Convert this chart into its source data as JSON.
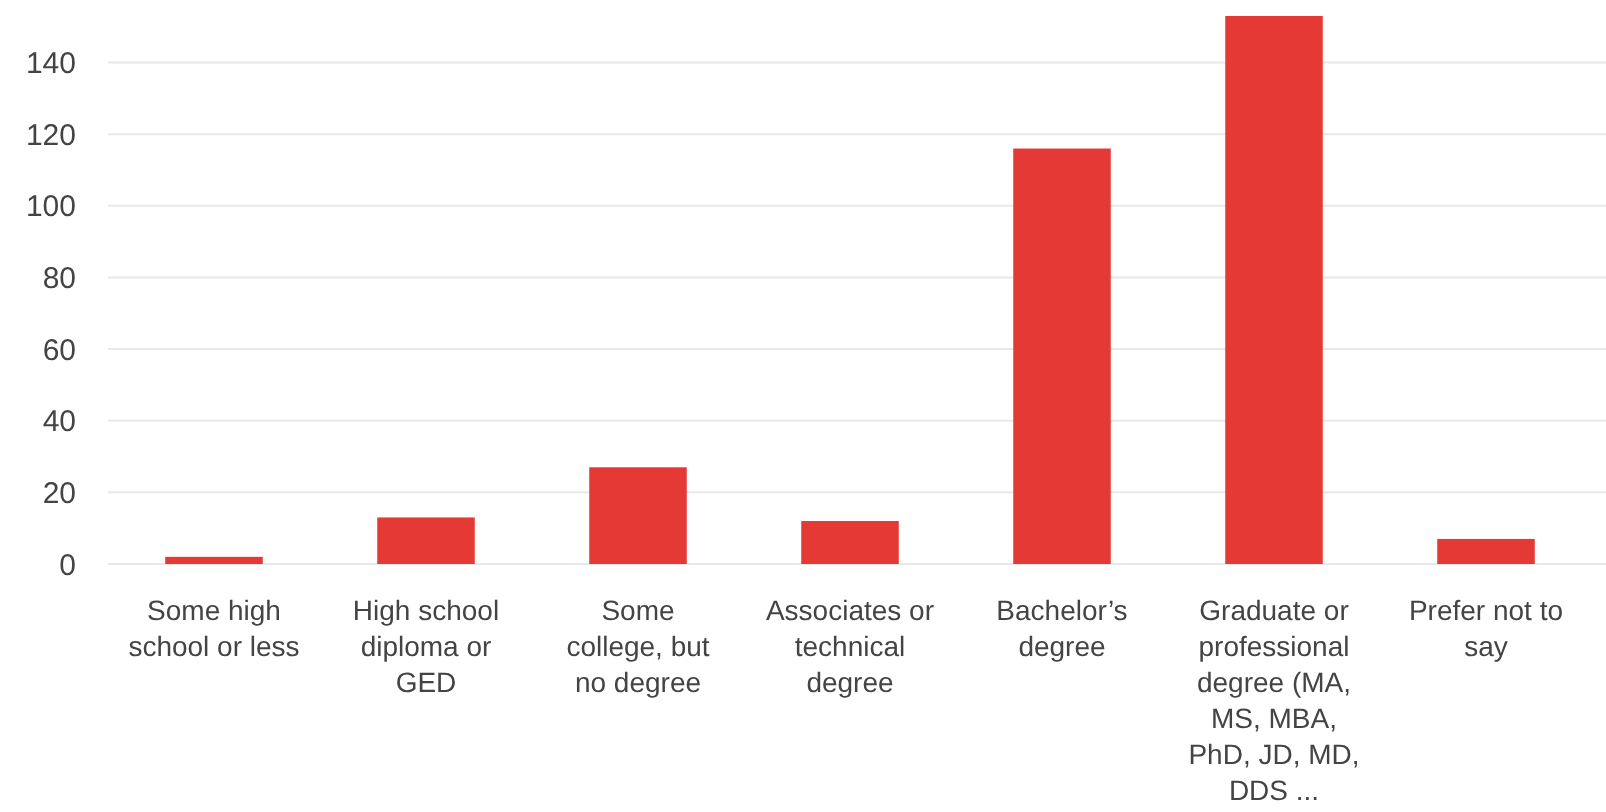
{
  "chart_data": {
    "type": "bar",
    "categories": [
      "Some high school or less",
      "High school diploma or GED",
      "Some college, but no degree",
      "Associates or technical degree",
      "Bachelor’s degree",
      "Graduate or professional degree (MA, MS, MBA, PhD, JD, MD, DDS ...",
      "Prefer not to say"
    ],
    "values": [
      2,
      13,
      27,
      12,
      116,
      153,
      7
    ],
    "color": "#e53935",
    "ylim": [
      0,
      153
    ],
    "yticks": [
      0,
      20,
      40,
      60,
      80,
      100,
      120,
      140
    ],
    "grid": "y"
  }
}
